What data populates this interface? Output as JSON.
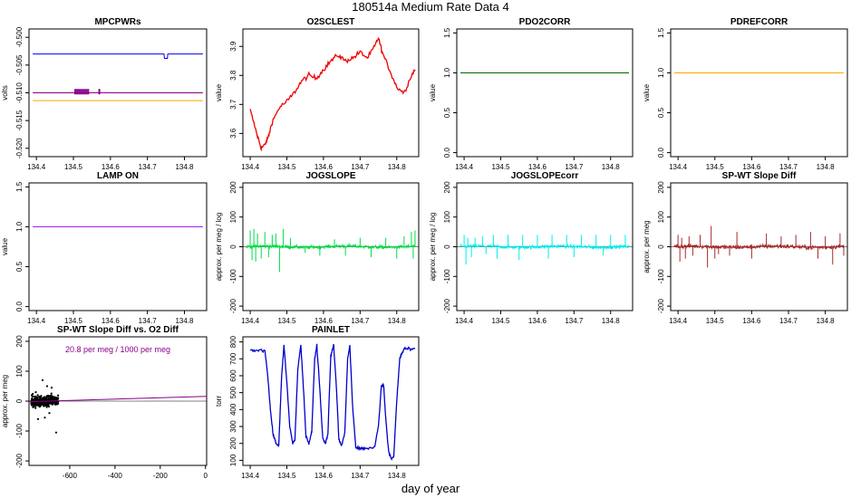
{
  "page": {
    "title": "180514a   Medium Rate Data 4",
    "bottom_label": "day of year"
  },
  "chart_data": [
    {
      "id": "mpcpwrs",
      "type": "line",
      "title": "MPCPWRs",
      "ylabel": "volts",
      "xlim": [
        134.38,
        134.86
      ],
      "ylim": [
        -0.5215,
        -0.4985
      ],
      "xticks": [
        "134.4",
        "134.5",
        "134.6",
        "134.7",
        "134.8"
      ],
      "yticks": [
        "-0.500",
        "-0.505",
        "-0.510",
        "-0.515",
        "-0.520"
      ],
      "series": [
        {
          "color": "#0000ee",
          "x": [
            134.39,
            134.745,
            134.746,
            134.754,
            134.755,
            134.85
          ],
          "y": [
            -0.503,
            -0.503,
            -0.5038,
            -0.5038,
            -0.503,
            -0.503
          ]
        },
        {
          "color": "#880088",
          "x": [
            134.39,
            134.85
          ],
          "y": [
            -0.51,
            -0.51
          ]
        },
        {
          "color": "#ffa500",
          "x": [
            134.39,
            134.85
          ],
          "y": [
            -0.5114,
            -0.5114
          ]
        }
      ]
    },
    {
      "id": "o2sclest",
      "type": "line",
      "title": "O2SCLEST",
      "ylabel": "value",
      "xlim": [
        134.38,
        134.86
      ],
      "ylim": [
        3.52,
        3.96
      ],
      "xticks": [
        "134.4",
        "134.5",
        "134.6",
        "134.7",
        "134.8"
      ],
      "yticks": [
        "3.6",
        "3.7",
        "3.8",
        "3.9"
      ],
      "series": [
        {
          "color": "#ee0000",
          "x": [
            134.4,
            134.42,
            134.43,
            134.44,
            134.45,
            134.46,
            134.48,
            134.5,
            134.52,
            134.54,
            134.56,
            134.58,
            134.6,
            134.62,
            134.64,
            134.66,
            134.68,
            134.7,
            134.72,
            134.74,
            134.75,
            134.76,
            134.78,
            134.8,
            134.82,
            134.84,
            134.85
          ],
          "y": [
            3.68,
            3.59,
            3.55,
            3.56,
            3.59,
            3.64,
            3.69,
            3.71,
            3.74,
            3.78,
            3.8,
            3.79,
            3.82,
            3.85,
            3.87,
            3.85,
            3.86,
            3.88,
            3.86,
            3.9,
            3.93,
            3.88,
            3.82,
            3.76,
            3.74,
            3.8,
            3.82
          ]
        }
      ]
    },
    {
      "id": "pdo2corr",
      "type": "line",
      "title": "PDO2CORR",
      "ylabel": "value",
      "xlim": [
        134.38,
        134.86
      ],
      "ylim": [
        -0.05,
        1.55
      ],
      "xticks": [
        "134.4",
        "134.5",
        "134.6",
        "134.7",
        "134.8"
      ],
      "yticks": [
        "0.0",
        "0.5",
        "1.0",
        "1.5"
      ],
      "series": [
        {
          "color": "#006400",
          "x": [
            134.39,
            134.85
          ],
          "y": [
            1.0,
            1.0
          ]
        }
      ]
    },
    {
      "id": "pdrefcorr",
      "type": "line",
      "title": "PDREFCORR",
      "ylabel": "value",
      "xlim": [
        134.38,
        134.86
      ],
      "ylim": [
        -0.05,
        1.55
      ],
      "xticks": [
        "134.4",
        "134.5",
        "134.6",
        "134.7",
        "134.8"
      ],
      "yticks": [
        "0.0",
        "0.5",
        "1.0",
        "1.5"
      ],
      "series": [
        {
          "color": "#ffa500",
          "x": [
            134.39,
            134.85
          ],
          "y": [
            1.0,
            1.0
          ]
        }
      ]
    },
    {
      "id": "lampon",
      "type": "line",
      "title": "LAMP ON",
      "ylabel": "value",
      "xlim": [
        134.38,
        134.86
      ],
      "ylim": [
        -0.05,
        1.55
      ],
      "xticks": [
        "134.4",
        "134.5",
        "134.6",
        "134.7",
        "134.8"
      ],
      "yticks": [
        "0.0",
        "0.5",
        "1.0",
        "1.5"
      ],
      "series": [
        {
          "color": "#a020f0",
          "x": [
            134.39,
            134.85
          ],
          "y": [
            1.0,
            1.0
          ]
        }
      ]
    },
    {
      "id": "jogslope",
      "type": "line",
      "title": "JOGSLOPE",
      "ylabel": "approx. per meg / log",
      "xlim": [
        134.38,
        134.86
      ],
      "ylim": [
        -215,
        215
      ],
      "xticks": [
        "134.4",
        "134.5",
        "134.6",
        "134.7",
        "134.8"
      ],
      "yticks": [
        "-200",
        "-100",
        "0",
        "100",
        "200"
      ],
      "series": [
        {
          "color": "#00dd44",
          "noise": 4,
          "spikes": [
            [
              134.4,
              55
            ],
            [
              134.405,
              -45
            ],
            [
              134.41,
              60
            ],
            [
              134.415,
              -50
            ],
            [
              134.42,
              45
            ],
            [
              134.43,
              -40
            ],
            [
              134.44,
              50
            ],
            [
              134.45,
              -35
            ],
            [
              134.46,
              40
            ],
            [
              134.47,
              45
            ],
            [
              134.48,
              -85
            ],
            [
              134.49,
              60
            ],
            [
              134.51,
              30
            ],
            [
              134.55,
              -20
            ],
            [
              134.59,
              -30
            ],
            [
              134.63,
              25
            ],
            [
              134.66,
              -30
            ],
            [
              134.7,
              30
            ],
            [
              134.73,
              -35
            ],
            [
              134.77,
              30
            ],
            [
              134.8,
              -40
            ],
            [
              134.82,
              35
            ],
            [
              134.84,
              50
            ],
            [
              134.845,
              -40
            ],
            [
              134.85,
              55
            ]
          ]
        }
      ]
    },
    {
      "id": "jogslopecorr",
      "type": "line",
      "title": "JOGSLOPEcorr",
      "ylabel": "approx. per meg / log",
      "xlim": [
        134.38,
        134.86
      ],
      "ylim": [
        -215,
        215
      ],
      "xticks": [
        "134.4",
        "134.5",
        "134.6",
        "134.7",
        "134.8"
      ],
      "yticks": [
        "-200",
        "-100",
        "0",
        "100",
        "200"
      ],
      "series": [
        {
          "color": "#00eeee",
          "noise": 4,
          "spikes": [
            [
              134.4,
              40
            ],
            [
              134.405,
              -60
            ],
            [
              134.41,
              30
            ],
            [
              134.42,
              -35
            ],
            [
              134.43,
              30
            ],
            [
              134.45,
              35
            ],
            [
              134.46,
              -25
            ],
            [
              134.48,
              40
            ],
            [
              134.49,
              -40
            ],
            [
              134.52,
              40
            ],
            [
              134.55,
              -45
            ],
            [
              134.56,
              40
            ],
            [
              134.6,
              40
            ],
            [
              134.63,
              -40
            ],
            [
              134.64,
              40
            ],
            [
              134.68,
              40
            ],
            [
              134.7,
              -35
            ],
            [
              134.72,
              40
            ],
            [
              134.76,
              40
            ],
            [
              134.78,
              -30
            ],
            [
              134.8,
              40
            ],
            [
              134.84,
              40
            ]
          ]
        }
      ]
    },
    {
      "id": "spwtslopediff",
      "type": "line",
      "title": "SP-WT Slope Diff",
      "ylabel": "approx. per meg",
      "xlim": [
        134.38,
        134.86
      ],
      "ylim": [
        -215,
        215
      ],
      "xticks": [
        "134.4",
        "134.5",
        "134.6",
        "134.7",
        "134.8"
      ],
      "yticks": [
        "-200",
        "-100",
        "0",
        "100",
        "200"
      ],
      "series": [
        {
          "color": "#a52a2a",
          "noise": 5,
          "spikes": [
            [
              134.4,
              40
            ],
            [
              134.405,
              -50
            ],
            [
              134.41,
              30
            ],
            [
              134.42,
              -40
            ],
            [
              134.43,
              35
            ],
            [
              134.44,
              -30
            ],
            [
              134.46,
              40
            ],
            [
              134.48,
              -70
            ],
            [
              134.49,
              70
            ],
            [
              134.5,
              -40
            ],
            [
              134.51,
              -25
            ],
            [
              134.54,
              -30
            ],
            [
              134.56,
              50
            ],
            [
              134.6,
              -40
            ],
            [
              134.64,
              45
            ],
            [
              134.68,
              35
            ],
            [
              134.72,
              40
            ],
            [
              134.76,
              50
            ],
            [
              134.78,
              -40
            ],
            [
              134.8,
              35
            ],
            [
              134.82,
              -60
            ],
            [
              134.84,
              45
            ],
            [
              134.85,
              -30
            ]
          ]
        }
      ]
    },
    {
      "id": "scatter",
      "type": "scatter",
      "title": "SP-WT Slope Diff vs. O2 Diff",
      "annotation": "20.8 per meg / 1000 per meg",
      "ylabel": "approx. per meg",
      "xlim": [
        -780,
        5
      ],
      "ylim": [
        -215,
        215
      ],
      "xticks": [
        "-600",
        "-400",
        "-200",
        "0"
      ],
      "xtick_values": [
        -600,
        -400,
        -200,
        0
      ],
      "yticks": [
        "-200",
        "-100",
        "0",
        "100",
        "200"
      ],
      "cluster": {
        "x": [
          -770,
          -650
        ],
        "y_sd": 12
      },
      "outliers": [
        [
          -720,
          70
        ],
        [
          -700,
          50
        ],
        [
          -690,
          -40
        ],
        [
          -740,
          -60
        ],
        [
          -660,
          -105
        ],
        [
          -710,
          -55
        ],
        [
          -680,
          45
        ],
        [
          -750,
          30
        ]
      ],
      "fit": {
        "color": "#880088",
        "x": [
          -780,
          5
        ],
        "y": [
          -2,
          16
        ]
      }
    },
    {
      "id": "painlet",
      "type": "line",
      "title": "PAINLET",
      "ylabel": "torr",
      "xlim": [
        134.38,
        134.86
      ],
      "ylim": [
        70,
        830
      ],
      "xticks": [
        "134.4",
        "134.5",
        "134.6",
        "134.7",
        "134.8"
      ],
      "yticks": [
        "100",
        "200",
        "300",
        "400",
        "500",
        "600",
        "700",
        "800"
      ],
      "series": [
        {
          "color": "#0000cc",
          "x": [
            134.4,
            134.42,
            134.44,
            134.448,
            134.455,
            134.462,
            134.47,
            134.478,
            134.486,
            134.492,
            134.5,
            134.508,
            134.516,
            134.522,
            134.53,
            134.538,
            134.546,
            134.552,
            134.56,
            134.568,
            134.576,
            134.582,
            134.59,
            134.598,
            134.606,
            134.612,
            134.62,
            134.628,
            134.636,
            134.642,
            134.65,
            134.658,
            134.666,
            134.672,
            134.68,
            134.688,
            134.696,
            134.702,
            134.71,
            134.72,
            134.74,
            134.75,
            134.758,
            134.764,
            134.77,
            134.778,
            134.786,
            134.792,
            134.8,
            134.808,
            134.812,
            134.82,
            134.83,
            134.85
          ],
          "y": [
            750,
            750,
            750,
            600,
            400,
            260,
            200,
            190,
            600,
            780,
            560,
            300,
            200,
            220,
            640,
            780,
            500,
            250,
            200,
            270,
            700,
            780,
            520,
            230,
            200,
            260,
            720,
            780,
            500,
            220,
            190,
            260,
            700,
            780,
            400,
            180,
            170,
            170,
            170,
            170,
            180,
            300,
            540,
            550,
            350,
            150,
            110,
            120,
            450,
            700,
            720,
            760,
            760,
            760
          ]
        }
      ]
    }
  ]
}
